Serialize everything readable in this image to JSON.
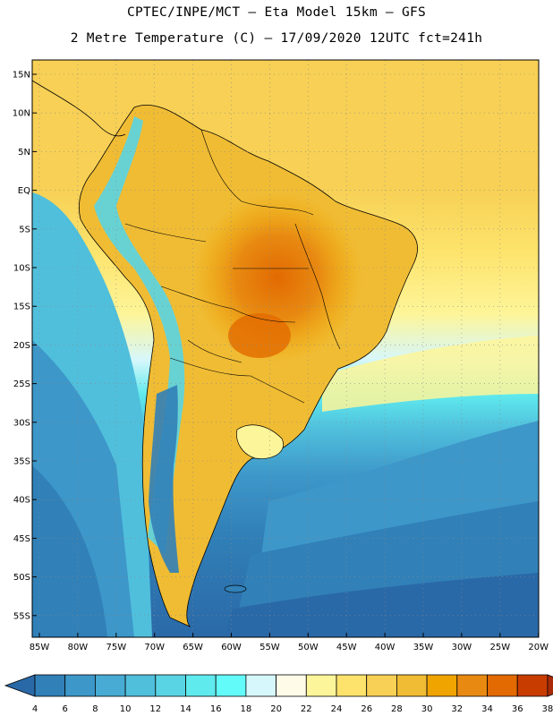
{
  "header": {
    "line1": "CPTEC/INPE/MCT –  Eta Model 15km – GFS",
    "line2": "2 Metre Temperature (C) – 17/09/2020 12UTC fct=241h"
  },
  "axes": {
    "lat_labels": [
      "15N",
      "10N",
      "5N",
      "EQ",
      "5S",
      "10S",
      "15S",
      "20S",
      "25S",
      "30S",
      "35S",
      "40S",
      "45S",
      "50S",
      "55S"
    ],
    "lon_labels": [
      "85W",
      "80W",
      "75W",
      "70W",
      "65W",
      "60W",
      "55W",
      "50W",
      "45W",
      "40W",
      "35W",
      "30W",
      "25W",
      "20W"
    ]
  },
  "colorbar": {
    "labels": [
      "4",
      "6",
      "8",
      "10",
      "12",
      "14",
      "16",
      "18",
      "20",
      "22",
      "24",
      "26",
      "28",
      "30",
      "32",
      "34",
      "36",
      "38"
    ],
    "colors": [
      "#2a69a8",
      "#3180b8",
      "#3d97c9",
      "#47abd3",
      "#50bfdc",
      "#59d4e4",
      "#5feaee",
      "#63fbfa",
      "#d6f7fb",
      "#fefbe8",
      "#fdf599",
      "#fde36b",
      "#f7d055",
      "#f0bc34",
      "#f0a400",
      "#e88a12",
      "#e26a00",
      "#c93c00",
      "#a82a08"
    ]
  }
}
